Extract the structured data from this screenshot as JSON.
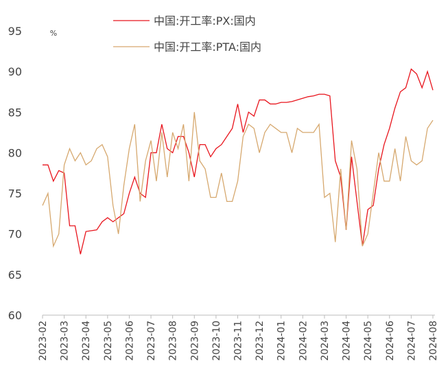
{
  "chart_data": {
    "type": "line",
    "y_label": "%",
    "legend": "top",
    "categories": [
      "2023-02",
      null,
      null,
      null,
      "2023-03",
      null,
      null,
      null,
      "2023-04",
      null,
      null,
      null,
      "2023-05",
      null,
      null,
      null,
      "2023-06",
      null,
      null,
      null,
      "2023-07",
      null,
      null,
      null,
      "2023-08",
      null,
      null,
      null,
      "2023-09",
      null,
      null,
      null,
      "2023-10",
      null,
      null,
      null,
      "2023-11",
      null,
      null,
      null,
      "2023-12",
      null,
      null,
      null,
      "2024-01",
      null,
      null,
      null,
      "2024-02",
      null,
      null,
      null,
      "2024-03",
      null,
      null,
      null,
      "2024-04",
      null,
      null,
      null,
      "2024-05",
      null,
      null,
      null,
      "2024-06",
      null,
      null,
      null,
      "2024-07",
      null,
      null,
      null,
      "2024-08"
    ],
    "series": [
      {
        "name": "中国:开工率:PX:国内",
        "color": "#e8141c",
        "values": [
          78.5,
          78.5,
          76.5,
          77.8,
          77.5,
          71,
          71,
          67.5,
          70.3,
          70.4,
          70.5,
          71.5,
          72,
          71.5,
          72,
          72.5,
          75,
          77,
          75,
          74.5,
          80,
          80,
          83.5,
          80.5,
          80,
          82,
          82,
          80,
          77,
          81,
          81,
          79.5,
          80.5,
          81,
          82,
          83,
          86,
          82.5,
          85,
          84.5,
          86.5,
          86.5,
          86,
          86,
          86.2,
          86.2,
          86.3,
          86.5,
          86.7,
          86.9,
          87,
          87.2,
          87.2,
          87,
          79,
          77,
          70.5,
          79.5,
          74,
          68.5,
          73,
          73.5,
          78,
          81,
          83,
          85.5,
          87.5,
          88,
          90.3,
          89.7,
          88,
          90,
          87.7
        ]
      },
      {
        "name": "中国:开工率:PTA:国内",
        "color": "#d6a86e",
        "values": [
          73.5,
          75,
          68.5,
          70,
          78.5,
          80.5,
          79,
          80,
          78.5,
          79,
          80.5,
          81,
          79.5,
          73.5,
          70,
          76,
          80.5,
          83.5,
          74,
          79,
          81.5,
          76.5,
          82.5,
          77,
          82.5,
          80.5,
          83.5,
          76.5,
          85,
          79,
          78,
          74.5,
          74.5,
          77.5,
          74,
          74,
          76.5,
          82,
          83.5,
          83,
          80,
          82.5,
          83.5,
          83,
          82.5,
          82.5,
          80,
          83,
          82.5,
          82.5,
          82.5,
          83.5,
          74.5,
          75,
          69,
          78,
          70.5,
          81.5,
          78,
          68.5,
          70,
          75,
          80,
          76.5,
          76.5,
          80.5,
          76.5,
          82,
          79,
          78.5,
          79,
          83,
          84
        ]
      }
    ],
    "ylim": [
      60,
      95
    ],
    "yticks": [
      60,
      65,
      70,
      75,
      80,
      85,
      90,
      95
    ]
  }
}
